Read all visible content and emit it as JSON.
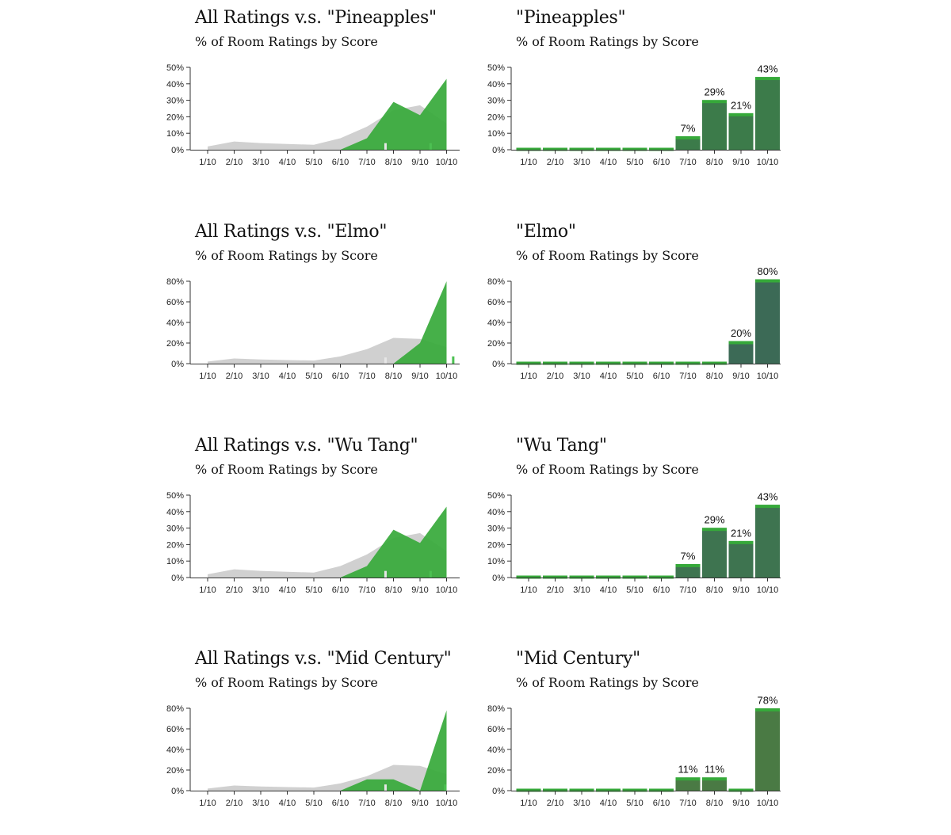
{
  "chart_data": [
    {
      "type": "area",
      "title": "All Ratings v.s. \"Pineapples\"",
      "subtitle": "% of Room Ratings by Score",
      "categories": [
        "1/10",
        "2/10",
        "3/10",
        "4/10",
        "5/10",
        "6/10",
        "7/10",
        "8/10",
        "9/10",
        "10/10"
      ],
      "ylim": [
        0,
        50
      ],
      "yticks": [
        "0%",
        "10%",
        "20%",
        "30%",
        "40%",
        "50%"
      ],
      "series": [
        {
          "values": [
            2,
            5,
            4,
            3.5,
            3,
            7,
            14,
            24,
            27,
            16
          ],
          "color": "#c8c8c8"
        },
        {
          "values": [
            0,
            0,
            0,
            0,
            0,
            0,
            7,
            29,
            21,
            43
          ],
          "color": "#36a93a"
        }
      ],
      "markers": [
        {
          "x": 7.7,
          "height": 4,
          "color": "#e6e6e6"
        },
        {
          "x": 9.4,
          "height": 4,
          "color": "#4cc052"
        }
      ]
    },
    {
      "type": "bar",
      "title": "\"Pineapples\"",
      "subtitle": "% of Room Ratings by Score",
      "categories": [
        "1/10",
        "2/10",
        "3/10",
        "4/10",
        "5/10",
        "6/10",
        "7/10",
        "8/10",
        "9/10",
        "10/10"
      ],
      "ylim": [
        0,
        50
      ],
      "yticks": [
        "0%",
        "10%",
        "20%",
        "30%",
        "40%",
        "50%"
      ],
      "values": [
        0,
        0,
        0,
        0,
        0,
        0,
        7,
        29,
        21,
        43
      ],
      "data_labels": [
        "",
        "",
        "",
        "",
        "",
        "",
        "7%",
        "29%",
        "21%",
        "43%"
      ],
      "color": "#36a93a",
      "fill_color": "#3c7b4a"
    },
    {
      "type": "area",
      "title": "All Ratings v.s. \"Elmo\"",
      "subtitle": "% of Room Ratings by Score",
      "categories": [
        "1/10",
        "2/10",
        "3/10",
        "4/10",
        "5/10",
        "6/10",
        "7/10",
        "8/10",
        "9/10",
        "10/10"
      ],
      "ylim": [
        0,
        80
      ],
      "yticks": [
        "0%",
        "20%",
        "40%",
        "60%",
        "80%"
      ],
      "series": [
        {
          "values": [
            2,
            5,
            4,
            3.5,
            3,
            7,
            14,
            25,
            24,
            16
          ],
          "color": "#c8c8c8"
        },
        {
          "values": [
            0,
            0,
            0,
            0,
            0,
            0,
            0,
            0,
            20,
            80
          ],
          "color": "#36a93a"
        }
      ],
      "markers": [
        {
          "x": 7.7,
          "height": 6,
          "color": "#e6e6e6"
        },
        {
          "x": 10.25,
          "height": 7,
          "color": "#4cc052"
        }
      ]
    },
    {
      "type": "bar",
      "title": "\"Elmo\"",
      "subtitle": "% of Room Ratings by Score",
      "categories": [
        "1/10",
        "2/10",
        "3/10",
        "4/10",
        "5/10",
        "6/10",
        "7/10",
        "8/10",
        "9/10",
        "10/10"
      ],
      "ylim": [
        0,
        80
      ],
      "yticks": [
        "0%",
        "20%",
        "40%",
        "60%",
        "80%"
      ],
      "values": [
        0,
        0,
        0,
        0,
        0,
        0,
        0,
        0,
        20,
        80
      ],
      "data_labels": [
        "",
        "",
        "",
        "",
        "",
        "",
        "",
        "",
        "20%",
        "80%"
      ],
      "color": "#36a93a",
      "fill_color": "#3c6a56"
    },
    {
      "type": "area",
      "title": "All Ratings v.s. \"Wu Tang\"",
      "subtitle": "% of Room Ratings by Score",
      "categories": [
        "1/10",
        "2/10",
        "3/10",
        "4/10",
        "5/10",
        "6/10",
        "7/10",
        "8/10",
        "9/10",
        "10/10"
      ],
      "ylim": [
        0,
        50
      ],
      "yticks": [
        "0%",
        "10%",
        "20%",
        "30%",
        "40%",
        "50%"
      ],
      "series": [
        {
          "values": [
            2,
            5,
            4,
            3.5,
            3,
            7,
            14,
            24,
            27,
            16
          ],
          "color": "#c8c8c8"
        },
        {
          "values": [
            0,
            0,
            0,
            0,
            0,
            0,
            7,
            29,
            21,
            43
          ],
          "color": "#36a93a"
        }
      ],
      "markers": [
        {
          "x": 7.7,
          "height": 4,
          "color": "#e6e6e6"
        },
        {
          "x": 9.4,
          "height": 4,
          "color": "#4cc052"
        }
      ]
    },
    {
      "type": "bar",
      "title": "\"Wu Tang\"",
      "subtitle": "% of Room Ratings by Score",
      "categories": [
        "1/10",
        "2/10",
        "3/10",
        "4/10",
        "5/10",
        "6/10",
        "7/10",
        "8/10",
        "9/10",
        "10/10"
      ],
      "ylim": [
        0,
        50
      ],
      "yticks": [
        "0%",
        "10%",
        "20%",
        "30%",
        "40%",
        "50%"
      ],
      "values": [
        0,
        0,
        0,
        0,
        0,
        0,
        7,
        29,
        21,
        43
      ],
      "data_labels": [
        "",
        "",
        "",
        "",
        "",
        "",
        "7%",
        "29%",
        "21%",
        "43%"
      ],
      "color": "#36a93a",
      "fill_color": "#3e7450"
    },
    {
      "type": "area",
      "title": "All Ratings v.s. \"Mid Century\"",
      "subtitle": "% of Room Ratings by Score",
      "categories": [
        "1/10",
        "2/10",
        "3/10",
        "4/10",
        "5/10",
        "6/10",
        "7/10",
        "8/10",
        "9/10",
        "10/10"
      ],
      "ylim": [
        0,
        80
      ],
      "yticks": [
        "0%",
        "20%",
        "40%",
        "60%",
        "80%"
      ],
      "series": [
        {
          "values": [
            2,
            5,
            4,
            3.5,
            3,
            7,
            14,
            25,
            24,
            16
          ],
          "color": "#c8c8c8"
        },
        {
          "values": [
            0,
            0,
            0,
            0,
            0,
            0,
            11,
            11,
            0,
            78
          ],
          "color": "#36a93a"
        }
      ],
      "markers": [
        {
          "x": 7.7,
          "height": 6,
          "color": "#e6e6e6"
        },
        {
          "x": 9.95,
          "height": 6,
          "color": "#4cc052"
        }
      ]
    },
    {
      "type": "bar",
      "title": "\"Mid Century\"",
      "subtitle": "% of Room Ratings by Score",
      "categories": [
        "1/10",
        "2/10",
        "3/10",
        "4/10",
        "5/10",
        "6/10",
        "7/10",
        "8/10",
        "9/10",
        "10/10"
      ],
      "ylim": [
        0,
        80
      ],
      "yticks": [
        "0%",
        "20%",
        "40%",
        "60%",
        "80%"
      ],
      "values": [
        0,
        0,
        0,
        0,
        0,
        0,
        11,
        11,
        0,
        78
      ],
      "data_labels": [
        "",
        "",
        "",
        "",
        "",
        "",
        "11%",
        "11%",
        "",
        "78%"
      ],
      "color": "#36a93a",
      "fill_color": "#4a7a44"
    }
  ]
}
